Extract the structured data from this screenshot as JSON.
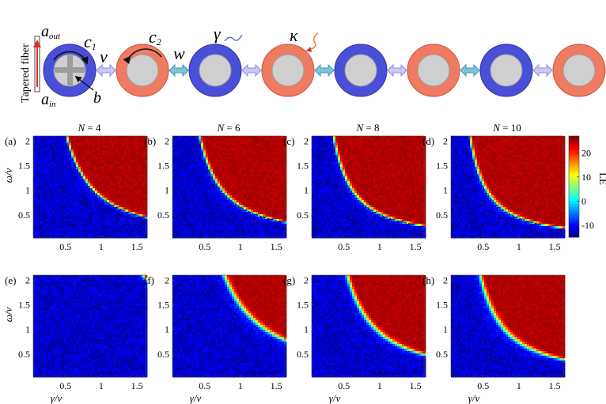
{
  "schematic": {
    "fiber_label": "Tapered fiber",
    "a_out": "a",
    "a_out_sub": "out",
    "a_in": "a",
    "a_in_sub": "in",
    "b": "b",
    "c1": "c",
    "c1_sub": "1",
    "c2": "c",
    "c2_sub": "2",
    "v": "v",
    "w": "w",
    "gamma": "γ",
    "kappa": "κ",
    "resonators": [
      "blue",
      "red",
      "blue",
      "red",
      "blue",
      "red",
      "blue",
      "red"
    ],
    "colors": {
      "blue": "#4a4fd8",
      "red": "#ee7b62",
      "core": "#cfcfcf",
      "link_light": "#c9c8f5",
      "link_dark": "#7fc3d8",
      "fiber_red": "#d9302a"
    }
  },
  "chart_data": {
    "type": "heatmap",
    "colorbar": {
      "label": "LE",
      "ticks": [
        20,
        10,
        0,
        -10
      ],
      "range": [
        -15,
        27
      ]
    },
    "rows": [
      {
        "panels": [
          {
            "letter": "(a)",
            "title_sym": "N",
            "title_val": " = 4",
            "threshold_A": 0.9,
            "boundary_width": 0.05,
            "dashed": true
          },
          {
            "letter": "(b)",
            "title_sym": "N",
            "title_val": " = 6",
            "threshold_A": 0.75,
            "boundary_width": 0.05,
            "dashed": true
          },
          {
            "letter": "(c)",
            "title_sym": "N",
            "title_val": " = 8",
            "threshold_A": 0.62,
            "boundary_width": 0.05,
            "dashed": true
          },
          {
            "letter": "(d)",
            "title_sym": "N",
            "title_val": " = 10",
            "threshold_A": 0.55,
            "boundary_width": 0.05,
            "dashed": true
          }
        ]
      },
      {
        "panels": [
          {
            "letter": "(e)",
            "title_sym": "",
            "title_val": "",
            "threshold_A": 2.75,
            "boundary_width": 0.08,
            "dashed": false
          },
          {
            "letter": "(f)",
            "title_sym": "",
            "title_val": "",
            "threshold_A": 1.35,
            "boundary_width": 0.1,
            "dashed": false
          },
          {
            "letter": "(g)",
            "title_sym": "",
            "title_val": "",
            "threshold_A": 0.95,
            "boundary_width": 0.08,
            "dashed": false
          },
          {
            "letter": "(h)",
            "title_sym": "",
            "title_val": "",
            "threshold_A": 0.8,
            "boundary_width": 0.08,
            "dashed": false
          }
        ]
      }
    ],
    "x_ticks": [
      "0.5",
      "1",
      "1.5"
    ],
    "x_tick_values": [
      0.5,
      1,
      1.5
    ],
    "y_ticks": [
      "2",
      "1.5",
      "1",
      "0.5"
    ],
    "y_tick_values": [
      2,
      1.5,
      1,
      0.5
    ],
    "xlim": [
      0.05,
      1.62
    ],
    "ylim": [
      0.05,
      2.1
    ],
    "xlabel": "γ/v",
    "ylabel": "ω/v",
    "inside_value": 25,
    "outside_value": -12
  }
}
